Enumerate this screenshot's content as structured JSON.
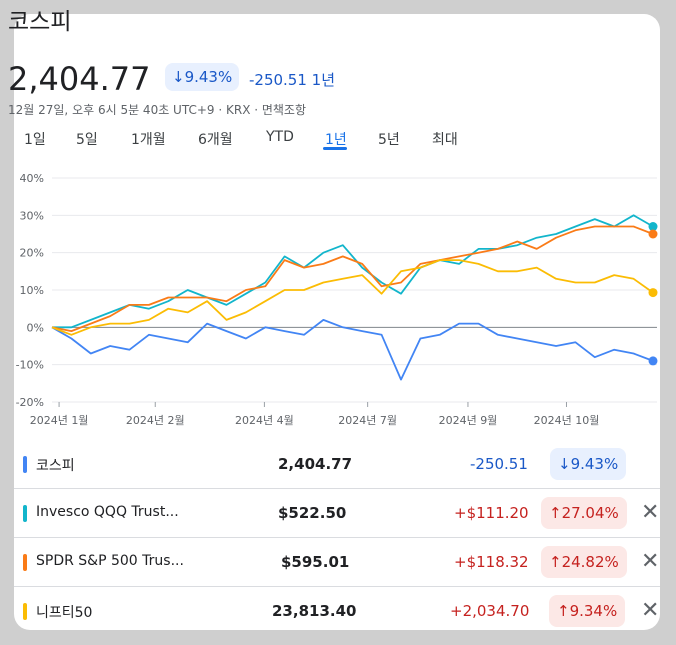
{
  "header": {
    "title": "코스피",
    "price": "2,404.77",
    "pct_change": "↓9.43%",
    "abs_change": "-250.51 1년",
    "meta": "12월 27일, 오후 6시 5분 40초 UTC+9 · KRX · 면책조항"
  },
  "tabs": [
    "1일",
    "5일",
    "1개월",
    "6개월",
    "YTD",
    "1년",
    "5년",
    "최대"
  ],
  "active_tab": "1년",
  "chart_data": {
    "type": "line",
    "y_unit": "%",
    "ylim": [
      -20,
      40
    ],
    "y_ticks": [
      "40%",
      "30%",
      "20%",
      "10%",
      "0%",
      "-10%",
      "-20%"
    ],
    "x_ticks": [
      "2024년 1월",
      "2024년 2월",
      "2024년 4월",
      "2024년 7월",
      "2024년 9월",
      "2024년 10월"
    ],
    "grid": true,
    "series": [
      {
        "name": "코스피",
        "color": "#4285f4",
        "values": [
          0,
          -3,
          -7,
          -5,
          -6,
          -2,
          -3,
          -4,
          1,
          -1,
          -3,
          0,
          -1,
          -2,
          2,
          0,
          -1,
          -2,
          -14,
          -3,
          -2,
          1,
          1,
          -2,
          -3,
          -4,
          -5,
          -4,
          -8,
          -6,
          -7,
          -9
        ]
      },
      {
        "name": "Invesco QQQ Trust...",
        "color": "#12b5cb",
        "values": [
          0,
          0,
          2,
          4,
          6,
          5,
          7,
          10,
          8,
          6,
          9,
          12,
          19,
          16,
          20,
          22,
          16,
          12,
          9,
          16,
          18,
          17,
          21,
          21,
          22,
          24,
          25,
          27,
          29,
          27,
          30,
          27
        ]
      },
      {
        "name": "SPDR S&P 500 Trus...",
        "color": "#fa7b17",
        "values": [
          0,
          -1,
          1,
          3,
          6,
          6,
          8,
          8,
          8,
          7,
          10,
          11,
          18,
          16,
          17,
          19,
          17,
          11,
          12,
          17,
          18,
          19,
          20,
          21,
          23,
          21,
          24,
          26,
          27,
          27,
          27,
          25
        ]
      },
      {
        "name": "니프티50",
        "color": "#fbbc04",
        "values": [
          0,
          -2,
          0,
          1,
          1,
          2,
          5,
          4,
          7,
          2,
          4,
          7,
          10,
          10,
          12,
          13,
          14,
          9,
          15,
          16,
          18,
          18,
          17,
          15,
          15,
          16,
          13,
          12,
          12,
          14,
          13,
          9.3
        ]
      }
    ]
  },
  "rows": [
    {
      "name": "코스피",
      "price": "2,404.77",
      "change": "-250.51",
      "pct": "↓9.43%",
      "color": "#4285f4",
      "status": "down"
    },
    {
      "name": "Invesco QQQ Trust...",
      "price": "$522.50",
      "change": "+$111.20",
      "pct": "↑27.04%",
      "color": "#12b5cb",
      "status": "up"
    },
    {
      "name": "SPDR S&P 500 Trus...",
      "price": "$595.01",
      "change": "+$118.32",
      "pct": "↑24.82%",
      "color": "#fa7b17",
      "status": "up"
    },
    {
      "name": "니프티50",
      "price": "23,813.40",
      "change": "+2,034.70",
      "pct": "↑9.34%",
      "color": "#fbbc04",
      "status": "up"
    }
  ],
  "colors": {
    "down": "#1a58c7",
    "down_bg": "#e8f0fe",
    "up": "#c5221f",
    "up_bg": "#fce8e6"
  }
}
